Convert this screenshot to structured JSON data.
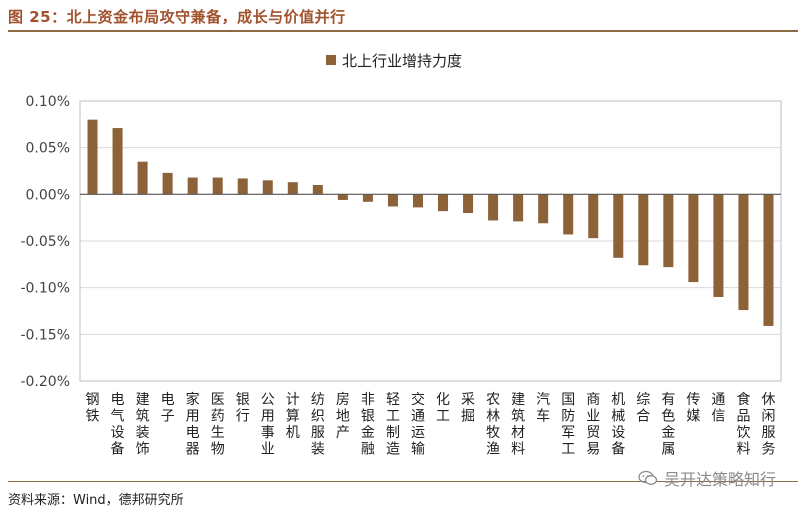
{
  "header": {
    "title": "图 25：北上资金布局攻守兼备，成长与价值并行"
  },
  "footer": {
    "source": "资料来源：Wind，德邦研究所"
  },
  "watermark": {
    "text": "吴开达策略知行",
    "icon": "wechat-icon"
  },
  "colors": {
    "bar": "#8c6239",
    "accent": "#a0522d",
    "grid": "#d9d9d9",
    "axis": "#bfbfbf"
  },
  "chart_data": {
    "type": "bar",
    "title": "",
    "xlabel": "",
    "ylabel": "",
    "ylim": [
      -0.002,
      0.001
    ],
    "yticks": [
      "0.10%",
      "0.05%",
      "0.00%",
      "-0.05%",
      "-0.10%",
      "-0.15%",
      "-0.20%"
    ],
    "grid": true,
    "legend": "top-center",
    "series": [
      {
        "name": "北上行业增持力度",
        "values": [
          0.0008,
          0.00071,
          0.00035,
          0.00023,
          0.00018,
          0.00018,
          0.00017,
          0.00015,
          0.00013,
          0.0001,
          -6e-05,
          -8e-05,
          -0.00013,
          -0.00014,
          -0.00018,
          -0.0002,
          -0.00028,
          -0.00029,
          -0.00031,
          -0.00043,
          -0.00047,
          -0.00068,
          -0.00076,
          -0.00078,
          -0.00094,
          -0.0011,
          -0.00124,
          -0.00141
        ]
      }
    ],
    "categories": [
      "钢铁",
      "电气设备",
      "建筑装饰",
      "电子",
      "家用电器",
      "医药生物",
      "银行",
      "公用事业",
      "计算机",
      "纺织服装",
      "房地产",
      "非银金融",
      "轻工制造",
      "交通运输",
      "化工",
      "采掘",
      "农林牧渔",
      "建筑材料",
      "汽车",
      "国防军工",
      "商业贸易",
      "机械设备",
      "综合",
      "有色金属",
      "传媒",
      "通信",
      "食品饮料",
      "休闲服务"
    ]
  }
}
